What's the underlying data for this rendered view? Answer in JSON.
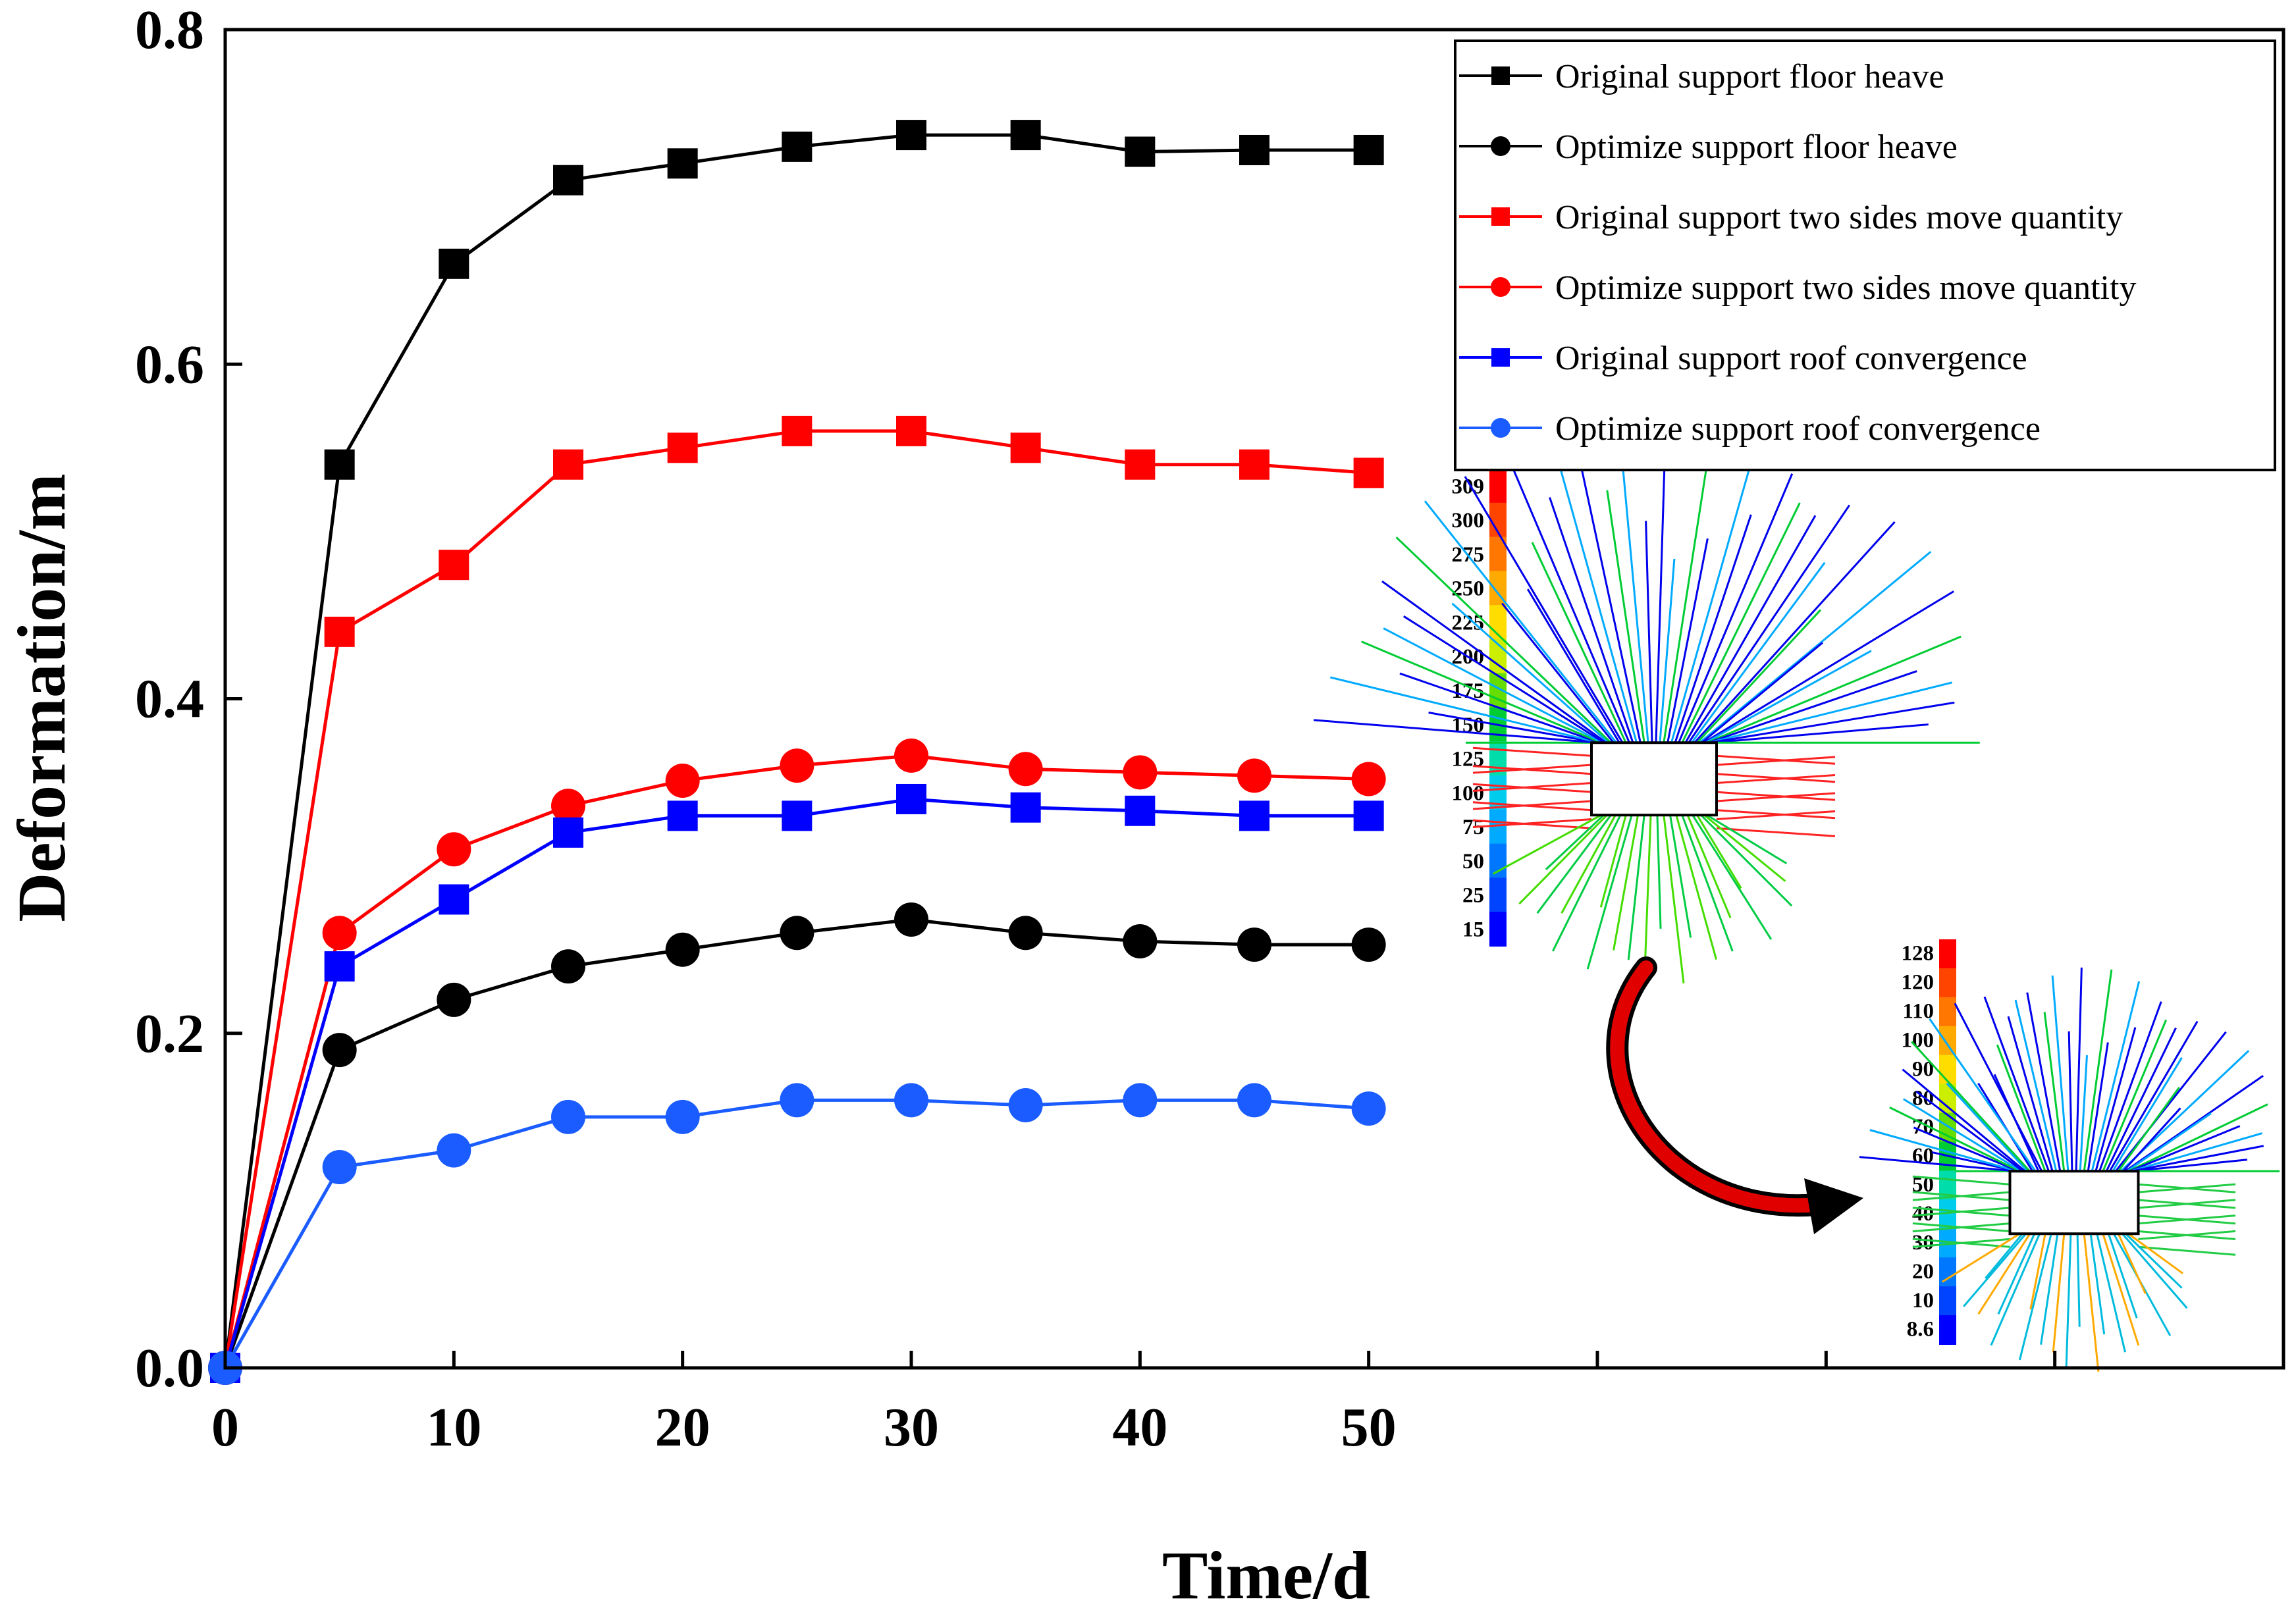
{
  "chart_data": {
    "type": "line",
    "title": "",
    "xlabel": "Time/d",
    "ylabel": "Deformation/m",
    "xlim": [
      0,
      90
    ],
    "ylim": [
      0,
      0.8
    ],
    "x_ticks": [
      0,
      10,
      20,
      30,
      40,
      50
    ],
    "x_tick_labels": [
      "0",
      "10",
      "20",
      "30",
      "40",
      "50"
    ],
    "y_ticks": [
      0.0,
      0.2,
      0.4,
      0.6,
      0.8
    ],
    "y_tick_labels": [
      "0.0",
      "0.2",
      "0.4",
      "0.6",
      "0.8"
    ],
    "legend_position": "top-right",
    "x": [
      0,
      5,
      10,
      15,
      20,
      25,
      30,
      35,
      40,
      45,
      50
    ],
    "series": [
      {
        "name": "Original support floor heave",
        "color": "#000000",
        "marker": "square",
        "values": [
          0.0,
          0.54,
          0.66,
          0.71,
          0.72,
          0.73,
          0.737,
          0.737,
          0.727,
          0.728,
          0.728
        ]
      },
      {
        "name": "Optimize support floor heave",
        "color": "#000000",
        "marker": "circle",
        "values": [
          0.0,
          0.19,
          0.22,
          0.24,
          0.25,
          0.26,
          0.268,
          0.26,
          0.255,
          0.253,
          0.253
        ]
      },
      {
        "name": "Original support two sides move quantity",
        "color": "#ff0000",
        "marker": "square",
        "values": [
          0.0,
          0.44,
          0.48,
          0.54,
          0.55,
          0.56,
          0.56,
          0.55,
          0.54,
          0.54,
          0.535
        ]
      },
      {
        "name": "Optimize support two sides move quantity",
        "color": "#ff0000",
        "marker": "circle",
        "values": [
          0.0,
          0.26,
          0.31,
          0.336,
          0.351,
          0.36,
          0.366,
          0.358,
          0.356,
          0.354,
          0.352
        ]
      },
      {
        "name": "Original support roof convergence",
        "color": "#0000ff",
        "marker": "square",
        "values": [
          0.0,
          0.24,
          0.28,
          0.32,
          0.33,
          0.33,
          0.34,
          0.335,
          0.333,
          0.33,
          0.33
        ]
      },
      {
        "name": "Optimize support roof convergence",
        "color": "#1a5cff",
        "marker": "circle",
        "values": [
          0.0,
          0.12,
          0.13,
          0.15,
          0.15,
          0.16,
          0.16,
          0.157,
          0.16,
          0.16,
          0.155
        ]
      }
    ],
    "insets": [
      {
        "name": "original-support-plastic-zone",
        "colorbar_labels": [
          "309",
          "300",
          "275",
          "250",
          "225",
          "200",
          "175",
          "150",
          "125",
          "100",
          "75",
          "50",
          "25",
          "15"
        ]
      },
      {
        "name": "optimized-support-plastic-zone",
        "colorbar_labels": [
          "128",
          "120",
          "110",
          "100",
          "90",
          "80",
          "70",
          "60",
          "50",
          "40",
          "30",
          "20",
          "10",
          "8.6"
        ]
      }
    ]
  },
  "colors": {
    "black": "#000000",
    "red": "#ff0000",
    "blue": "#0000ff",
    "light_blue": "#1a5cff",
    "arrow_red": "#e00000"
  }
}
